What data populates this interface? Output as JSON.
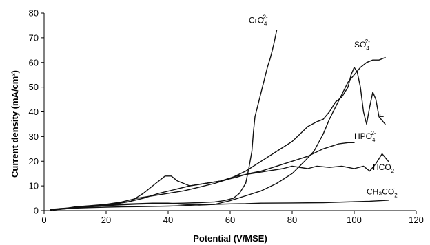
{
  "chart_data": {
    "type": "line",
    "title": "",
    "xlabel": "Potential (V/MSE)",
    "ylabel": "Current density (mA/cm²)",
    "xlim": [
      0,
      120
    ],
    "ylim": [
      0,
      80
    ],
    "x_ticks": [
      "0",
      "20",
      "40",
      "60",
      "80",
      "100",
      "120"
    ],
    "y_ticks": [
      "0",
      "10",
      "20",
      "30",
      "40",
      "50",
      "60",
      "70",
      "80"
    ],
    "grid": false,
    "legend": "none (series labelled directly on plot)",
    "series": [
      {
        "name": "CrO4 2-",
        "label_main": "CrO",
        "label_sub": "4",
        "label_sup": "2-",
        "points": [
          [
            2,
            0.3
          ],
          [
            6,
            0.6
          ],
          [
            10,
            1.1
          ],
          [
            15,
            1.5
          ],
          [
            20,
            2
          ],
          [
            25,
            2.3
          ],
          [
            30,
            2.6
          ],
          [
            35,
            2.8
          ],
          [
            40,
            2.9
          ],
          [
            45,
            3
          ],
          [
            50,
            3.2
          ],
          [
            55,
            3.5
          ],
          [
            58,
            4
          ],
          [
            61,
            5
          ],
          [
            63,
            7
          ],
          [
            65,
            11
          ],
          [
            66,
            17
          ],
          [
            67,
            24
          ],
          [
            67.5,
            32
          ],
          [
            68,
            38
          ],
          [
            69,
            43
          ],
          [
            70,
            48
          ],
          [
            71,
            53
          ],
          [
            72,
            58
          ],
          [
            73,
            62
          ],
          [
            74,
            67
          ],
          [
            75,
            73
          ]
        ],
        "label_at": [
          66,
          76
        ]
      },
      {
        "name": "SO4 2-",
        "label_main": "SO",
        "label_sub": "4",
        "label_sup": "2-",
        "points": [
          [
            3,
            0.3
          ],
          [
            8,
            0.8
          ],
          [
            12,
            1.4
          ],
          [
            16,
            1.8
          ],
          [
            20,
            2.2
          ],
          [
            25,
            2.6
          ],
          [
            30,
            2.8
          ],
          [
            35,
            3
          ],
          [
            40,
            3
          ],
          [
            45,
            2.5
          ],
          [
            50,
            2.2
          ],
          [
            55,
            2.5
          ],
          [
            60,
            4
          ],
          [
            65,
            6
          ],
          [
            70,
            8
          ],
          [
            75,
            11
          ],
          [
            80,
            15
          ],
          [
            84,
            20
          ],
          [
            87,
            24
          ],
          [
            90,
            31
          ],
          [
            92,
            37
          ],
          [
            94,
            42
          ],
          [
            96,
            47
          ],
          [
            98,
            52
          ],
          [
            100,
            55
          ],
          [
            102,
            58
          ],
          [
            104,
            60
          ],
          [
            106,
            61
          ],
          [
            108,
            61
          ],
          [
            110,
            62
          ]
        ],
        "label_at": [
          100,
          66
        ]
      },
      {
        "name": "F-",
        "label_main": "F",
        "label_sub": "",
        "label_sup": "-",
        "points": [
          [
            5,
            0.5
          ],
          [
            10,
            1.5
          ],
          [
            15,
            2
          ],
          [
            20,
            2.5
          ],
          [
            25,
            3.5
          ],
          [
            30,
            5
          ],
          [
            35,
            6
          ],
          [
            40,
            7
          ],
          [
            45,
            8
          ],
          [
            50,
            9.5
          ],
          [
            55,
            11
          ],
          [
            60,
            13
          ],
          [
            65,
            16
          ],
          [
            70,
            20
          ],
          [
            75,
            24
          ],
          [
            80,
            28
          ],
          [
            85,
            34
          ],
          [
            88,
            36
          ],
          [
            90,
            37
          ],
          [
            92,
            40
          ],
          [
            94,
            44
          ],
          [
            96,
            46
          ],
          [
            98,
            50
          ],
          [
            99,
            55
          ],
          [
            100,
            58
          ],
          [
            101,
            56
          ],
          [
            102,
            50
          ],
          [
            103,
            40
          ],
          [
            104,
            35
          ],
          [
            105,
            42
          ],
          [
            106,
            48
          ],
          [
            107,
            45
          ],
          [
            108,
            38
          ],
          [
            110,
            35
          ]
        ],
        "label_at": [
          108,
          37
        ]
      },
      {
        "name": "HPO4 2-",
        "label_main": "HPO",
        "label_sub": "4",
        "label_sup": "2-",
        "points": [
          [
            3,
            0.5
          ],
          [
            8,
            1
          ],
          [
            13,
            1.5
          ],
          [
            18,
            2
          ],
          [
            23,
            2.8
          ],
          [
            28,
            3.8
          ],
          [
            32,
            7
          ],
          [
            36,
            11
          ],
          [
            39,
            14
          ],
          [
            41,
            14
          ],
          [
            43,
            12
          ],
          [
            47,
            10
          ],
          [
            52,
            11
          ],
          [
            57,
            12
          ],
          [
            62,
            13.5
          ],
          [
            66,
            15
          ],
          [
            70,
            16
          ],
          [
            75,
            18
          ],
          [
            80,
            20
          ],
          [
            85,
            22
          ],
          [
            90,
            25
          ],
          [
            95,
            27
          ],
          [
            98,
            27.5
          ],
          [
            100,
            27.5
          ]
        ],
        "label_at": [
          100,
          29
        ]
      },
      {
        "name": "HCO2-",
        "label_main": "HCO",
        "label_sub": "2",
        "label_sup": "-",
        "points": [
          [
            2,
            0.5
          ],
          [
            7,
            1
          ],
          [
            12,
            1.5
          ],
          [
            17,
            2
          ],
          [
            22,
            2.5
          ],
          [
            27,
            3.5
          ],
          [
            32,
            5
          ],
          [
            37,
            7
          ],
          [
            42,
            8.5
          ],
          [
            47,
            10
          ],
          [
            52,
            11
          ],
          [
            57,
            12
          ],
          [
            62,
            14
          ],
          [
            67,
            15
          ],
          [
            72,
            16
          ],
          [
            77,
            17
          ],
          [
            80,
            18
          ],
          [
            85,
            17
          ],
          [
            88,
            18
          ],
          [
            92,
            17.5
          ],
          [
            96,
            18
          ],
          [
            100,
            17
          ],
          [
            103,
            18
          ],
          [
            105,
            16
          ],
          [
            107,
            19
          ],
          [
            109,
            23
          ],
          [
            111,
            20
          ]
        ],
        "label_at": [
          106,
          16.5
        ]
      },
      {
        "name": "CH3CO2-",
        "label_main": "CH₃CO",
        "label_sub": "2",
        "label_sup": "-",
        "points": [
          [
            5,
            0.8
          ],
          [
            10,
            1
          ],
          [
            15,
            1.2
          ],
          [
            20,
            1.4
          ],
          [
            25,
            1.5
          ],
          [
            30,
            1.6
          ],
          [
            35,
            1.7
          ],
          [
            40,
            1.8
          ],
          [
            45,
            2
          ],
          [
            50,
            2.3
          ],
          [
            55,
            2.5
          ],
          [
            60,
            2.7
          ],
          [
            65,
            2.8
          ],
          [
            70,
            3
          ],
          [
            80,
            3.1
          ],
          [
            90,
            3.2
          ],
          [
            100,
            3.6
          ],
          [
            105,
            3.8
          ],
          [
            111,
            4.2
          ]
        ],
        "label_at": [
          104,
          6.5
        ]
      }
    ]
  }
}
